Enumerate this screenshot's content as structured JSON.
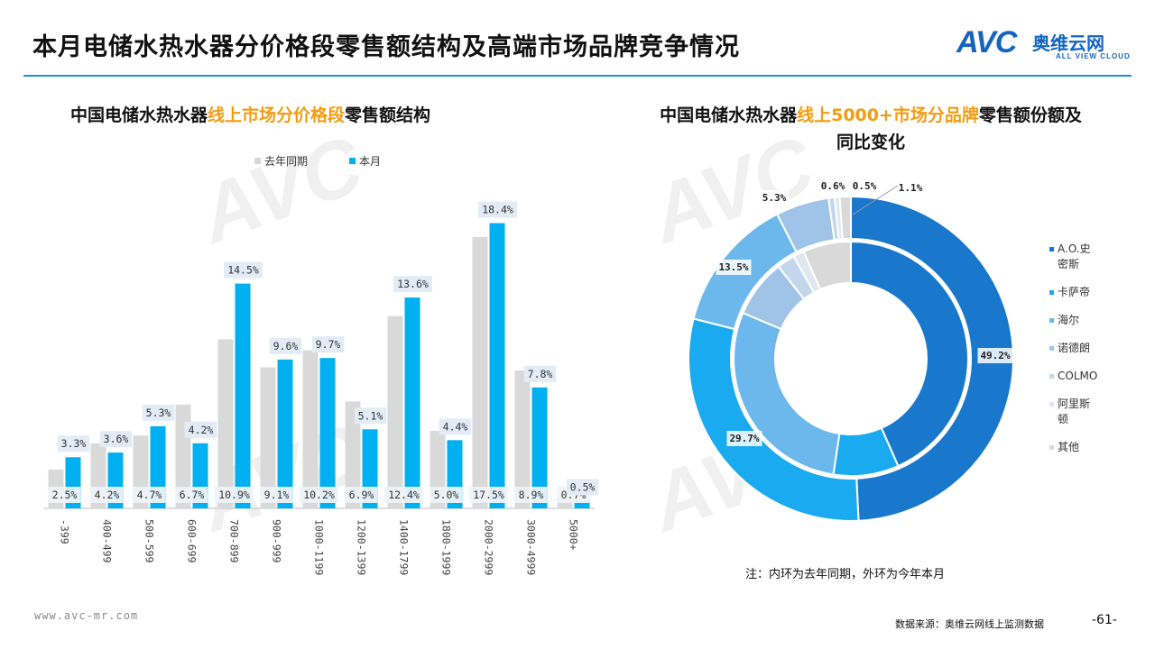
{
  "page": {
    "title": "本月电储水热水器分价格段零售额结构及高端市场品牌竞争情况",
    "logo_cn": "奥维云网",
    "logo_en": "ALL VIEW CLOUD",
    "logo_mark": "AVC",
    "footer_url": "www.avc-mr.com",
    "footer_source": "数据来源：奥维云网线上监测数据",
    "page_number": "-61-",
    "note": "注：内环为去年同期，外环为今年本月"
  },
  "left_title": {
    "pre": "中国电储水热水器",
    "hl": "线上市场分价格段",
    "post": "零售额结构"
  },
  "right_title": {
    "pre": "中国电储水热水器",
    "hl": "线上5000+市场分品牌",
    "post": "零售额份额及同比变化"
  },
  "colors": {
    "prev": "#d9d9d9",
    "curr": "#00b0f0",
    "accent": "#f39c12",
    "brand": "#1565c0"
  },
  "chart_data": [
    {
      "type": "bar",
      "categories": [
        "-399",
        "400-499",
        "500-599",
        "600-699",
        "700-899",
        "900-999",
        "1000-1199",
        "1200-1399",
        "1400-1799",
        "1800-1999",
        "2000-2999",
        "3000-4999",
        "5000+"
      ],
      "series": [
        {
          "name": "去年同期",
          "values": [
            2.5,
            4.2,
            4.7,
            6.7,
            10.9,
            9.1,
            10.2,
            6.9,
            12.4,
            5.0,
            17.5,
            8.9,
            0.7
          ]
        },
        {
          "name": "本月",
          "values": [
            3.3,
            3.6,
            5.3,
            4.2,
            14.5,
            9.6,
            9.7,
            5.1,
            13.6,
            4.4,
            18.4,
            7.8,
            0.5
          ]
        }
      ],
      "prev_labels": [
        "2.5%",
        "4.2%",
        "4.7%",
        "6.7%",
        "10.9%",
        "9.1%",
        "10.2%",
        "6.9%",
        "12.4%",
        "5.0%",
        "17.5%",
        "8.9%",
        "0.7%"
      ],
      "curr_labels": [
        "3.3%",
        "3.6%",
        "5.3%",
        "4.2%",
        "14.5%",
        "9.6%",
        "9.7%",
        "5.1%",
        "13.6%",
        "4.4%",
        "18.4%",
        "7.8%",
        "0.5%"
      ],
      "ylim": [
        0,
        20
      ],
      "legend_position": "top"
    },
    {
      "type": "pie",
      "categories": [
        "A.O.史密斯",
        "卡萨帝",
        "海尔",
        "诺德朗",
        "COLMO",
        "阿里斯顿",
        "其他"
      ],
      "legend_labels": [
        "A.O.史\n密斯",
        "卡萨帝",
        "海尔",
        "诺德朗",
        "COLMO",
        "阿里斯\n顿",
        "其他"
      ],
      "colors": [
        "#1a78cc",
        "#1aaaf0",
        "#6cb8ec",
        "#9fc4e8",
        "#c3d6ec",
        "#dfe7f1",
        "#d9d9d9"
      ],
      "outer_values": [
        49.2,
        29.7,
        13.5,
        5.3,
        0.6,
        0.5,
        1.1
      ],
      "outer_labels": [
        "49.2%",
        "29.7%",
        "13.5%",
        "5.3%",
        "0.6%",
        "0.5%",
        "1.1%"
      ],
      "inner_values": [
        43.4,
        9.0,
        29.0,
        8.0,
        2.5,
        1.5,
        6.6
      ],
      "legend_position": "right"
    }
  ]
}
